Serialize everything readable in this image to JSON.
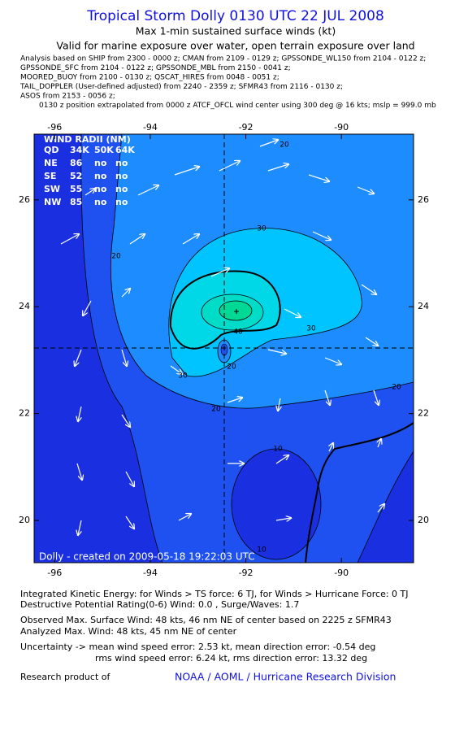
{
  "header": {
    "title": "Tropical Storm Dolly 0130 UTC 22 JUL 2008",
    "subtitle": "Max 1-min sustained surface winds (kt)",
    "validity": "Valid for marine exposure over water, open terrain exposure over land",
    "analysis_lines": [
      "Analysis based on  SHIP from 2300 - 0000 z;  CMAN from 2109 - 0129 z;  GPSSONDE_WL150 from 2104 - 0122 z;",
      "GPSSONDE_SFC from 2104 - 0122 z;  GPSSONDE_MBL from 2150 - 0041 z;",
      "MOORED_BUOY from 2100 - 0130 z;  QSCAT_HIRES from 0048 - 0051 z;",
      "TAIL_DOPPLER (User-defined adjusted) from 2240 - 2359 z;  SFMR43 from 2116 - 0130 z;",
      "ASOS from 2153 - 0056 z;",
      "0130 z position extrapolated from 0000 z ATCF_OFCL wind center using 300 deg @ 16 kts; mslp = 999.0 mb"
    ]
  },
  "map": {
    "xlim": [
      -96.43,
      -88.49
    ],
    "ylim": [
      19.21,
      27.23
    ],
    "xticks": [
      -96,
      -94,
      -92,
      -90
    ],
    "yticks": [
      20,
      22,
      24,
      26
    ],
    "contour_labels": [
      "20",
      "20",
      "30",
      "30",
      "40",
      "30",
      "20",
      "20",
      "20",
      "10",
      "10"
    ],
    "wind_radii": {
      "title": "WIND RADII (NM)",
      "header": [
        "QD",
        "34K",
        "50K",
        "64K"
      ],
      "rows": [
        [
          "NE",
          "86",
          "no",
          "no"
        ],
        [
          "SE",
          "52",
          "no",
          "no"
        ],
        [
          "SW",
          "55",
          "no",
          "no"
        ],
        [
          "NW",
          "85",
          "no",
          "no"
        ]
      ]
    },
    "credit": "Dolly - created on 2009-05-18 19:22:03 UTC"
  },
  "footer": {
    "lines": [
      "Integrated Kinetic Energy:  for Winds > TS force: 6 TJ,  for Winds > Hurricane Force: 0 TJ",
      "Destructive Potential Rating(0-6)   Wind: 0.0 , Surge/Waves: 1.7",
      "Observed Max. Surface Wind: 48 kts, 46 nm NE of center based on 2225 z SFMR43",
      "Analyzed Max. Wind: 48 kts, 45 nm NE of center",
      "Uncertainty -> mean wind speed error: 2.53 kt,   mean direction error:  -0.54 deg",
      "rms wind speed error: 6.24 kt,   rms direction error: 13.32 deg"
    ],
    "research": "Research product of",
    "org": "NOAA / AOML / Hurricane Research Division"
  }
}
